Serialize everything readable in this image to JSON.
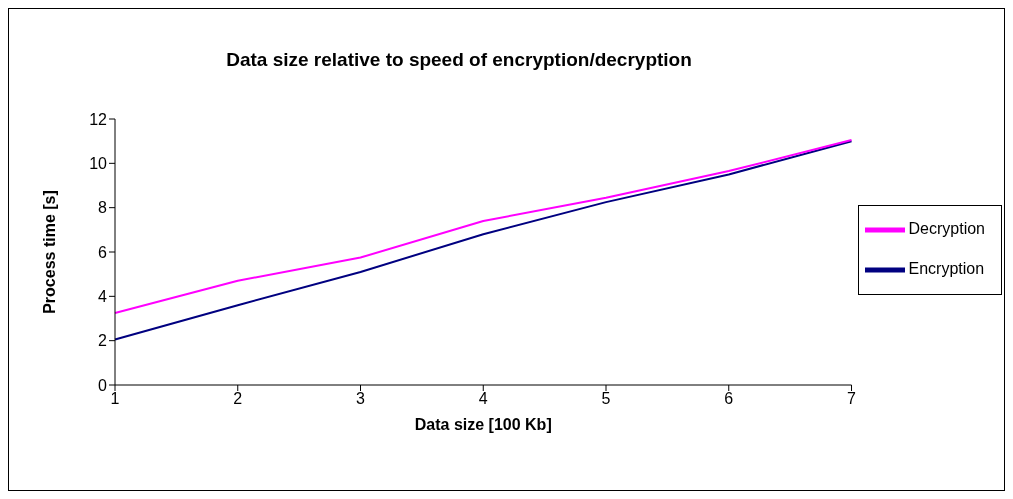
{
  "chart_data": {
    "type": "line",
    "title": "Data size relative to speed of encryption/decryption",
    "xlabel": "Data size [100 Kb]",
    "ylabel": "Process time [s]",
    "categories": [
      "1",
      "2",
      "3",
      "4",
      "5",
      "6",
      "7"
    ],
    "series": [
      {
        "name": "Encryption",
        "color": "#000080",
        "values": [
          2.05,
          3.6,
          5.1,
          6.8,
          8.25,
          9.5,
          11.0
        ]
      },
      {
        "name": "Decryption",
        "color": "#ff00ff",
        "values": [
          3.25,
          4.7,
          5.75,
          7.4,
          8.45,
          9.65,
          11.05
        ]
      }
    ],
    "ylim": [
      0,
      12
    ],
    "yticks": [
      0,
      2,
      4,
      6,
      8,
      10,
      12
    ],
    "grid": false,
    "legend": "right",
    "marker": "none",
    "line_style": "solid"
  }
}
